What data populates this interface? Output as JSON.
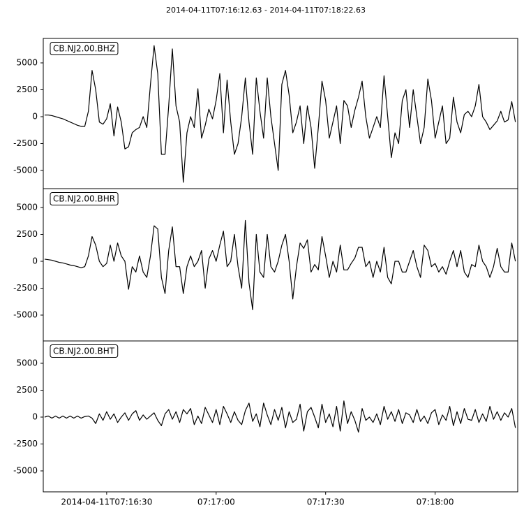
{
  "chart_data": {
    "type": "line",
    "title": "2014-04-11T07:16:12.63  -  2014-04-11T07:18:22.63",
    "xlim": [
      "2014-04-11T07:16:12.63",
      "2014-04-11T07:18:22.63"
    ],
    "xticks": [
      {
        "value": "2014-04-11T07:16:30",
        "label": "2014-04-11T07:16:30"
      },
      {
        "value": "2014-04-11T07:17:00",
        "label": "07:17:00"
      },
      {
        "value": "2014-04-11T07:17:30",
        "label": "07:17:30"
      },
      {
        "value": "2014-04-11T07:18:00",
        "label": "07:18:00"
      }
    ],
    "yticks": [
      -5000,
      -2500,
      0,
      2500,
      5000
    ],
    "x": [
      "2014-04-11T07:16:13",
      "2014-04-11T07:16:14",
      "2014-04-11T07:16:15",
      "2014-04-11T07:16:16",
      "2014-04-11T07:16:17",
      "2014-04-11T07:16:18",
      "2014-04-11T07:16:19",
      "2014-04-11T07:16:20",
      "2014-04-11T07:16:21",
      "2014-04-11T07:16:22",
      "2014-04-11T07:16:23",
      "2014-04-11T07:16:24",
      "2014-04-11T07:16:25",
      "2014-04-11T07:16:26",
      "2014-04-11T07:16:27",
      "2014-04-11T07:16:28",
      "2014-04-11T07:16:29",
      "2014-04-11T07:16:30",
      "2014-04-11T07:16:31",
      "2014-04-11T07:16:32",
      "2014-04-11T07:16:33",
      "2014-04-11T07:16:34",
      "2014-04-11T07:16:35",
      "2014-04-11T07:16:36",
      "2014-04-11T07:16:37",
      "2014-04-11T07:16:38",
      "2014-04-11T07:16:39",
      "2014-04-11T07:16:40",
      "2014-04-11T07:16:41",
      "2014-04-11T07:16:42",
      "2014-04-11T07:16:43",
      "2014-04-11T07:16:44",
      "2014-04-11T07:16:45",
      "2014-04-11T07:16:46",
      "2014-04-11T07:16:47",
      "2014-04-11T07:16:48",
      "2014-04-11T07:16:49",
      "2014-04-11T07:16:50",
      "2014-04-11T07:16:51",
      "2014-04-11T07:16:52",
      "2014-04-11T07:16:53",
      "2014-04-11T07:16:54",
      "2014-04-11T07:16:55",
      "2014-04-11T07:16:56",
      "2014-04-11T07:16:57",
      "2014-04-11T07:16:58",
      "2014-04-11T07:16:59",
      "2014-04-11T07:17:00",
      "2014-04-11T07:17:01",
      "2014-04-11T07:17:02",
      "2014-04-11T07:17:03",
      "2014-04-11T07:17:04",
      "2014-04-11T07:17:05",
      "2014-04-11T07:17:06",
      "2014-04-11T07:17:07",
      "2014-04-11T07:17:08",
      "2014-04-11T07:17:09",
      "2014-04-11T07:17:10",
      "2014-04-11T07:17:11",
      "2014-04-11T07:17:12",
      "2014-04-11T07:17:13",
      "2014-04-11T07:17:14",
      "2014-04-11T07:17:15",
      "2014-04-11T07:17:16",
      "2014-04-11T07:17:17",
      "2014-04-11T07:17:18",
      "2014-04-11T07:17:19",
      "2014-04-11T07:17:20",
      "2014-04-11T07:17:21",
      "2014-04-11T07:17:22",
      "2014-04-11T07:17:23",
      "2014-04-11T07:17:24",
      "2014-04-11T07:17:25",
      "2014-04-11T07:17:26",
      "2014-04-11T07:17:27",
      "2014-04-11T07:17:28",
      "2014-04-11T07:17:29",
      "2014-04-11T07:17:30",
      "2014-04-11T07:17:31",
      "2014-04-11T07:17:32",
      "2014-04-11T07:17:33",
      "2014-04-11T07:17:34",
      "2014-04-11T07:17:35",
      "2014-04-11T07:17:36",
      "2014-04-11T07:17:37",
      "2014-04-11T07:17:38",
      "2014-04-11T07:17:39",
      "2014-04-11T07:17:40",
      "2014-04-11T07:17:41",
      "2014-04-11T07:17:42",
      "2014-04-11T07:17:43",
      "2014-04-11T07:17:44",
      "2014-04-11T07:17:45",
      "2014-04-11T07:17:46",
      "2014-04-11T07:17:47",
      "2014-04-11T07:17:48",
      "2014-04-11T07:17:49",
      "2014-04-11T07:17:50",
      "2014-04-11T07:17:51",
      "2014-04-11T07:17:52",
      "2014-04-11T07:17:53",
      "2014-04-11T07:17:54",
      "2014-04-11T07:17:55",
      "2014-04-11T07:17:56",
      "2014-04-11T07:17:57",
      "2014-04-11T07:17:58",
      "2014-04-11T07:17:59",
      "2014-04-11T07:18:00",
      "2014-04-11T07:18:01",
      "2014-04-11T07:18:02",
      "2014-04-11T07:18:03",
      "2014-04-11T07:18:04",
      "2014-04-11T07:18:05",
      "2014-04-11T07:18:06",
      "2014-04-11T07:18:07",
      "2014-04-11T07:18:08",
      "2014-04-11T07:18:09",
      "2014-04-11T07:18:10",
      "2014-04-11T07:18:11",
      "2014-04-11T07:18:12",
      "2014-04-11T07:18:13",
      "2014-04-11T07:18:14",
      "2014-04-11T07:18:15",
      "2014-04-11T07:18:16",
      "2014-04-11T07:18:17",
      "2014-04-11T07:18:18",
      "2014-04-11T07:18:19",
      "2014-04-11T07:18:20",
      "2014-04-11T07:18:21",
      "2014-04-11T07:18:22"
    ],
    "series": [
      {
        "name": "CB.NJ2.00.BHZ",
        "color": "#000000",
        "ylim": [
          -6690,
          7273
        ],
        "values": [
          150,
          150,
          100,
          0,
          -100,
          -200,
          -350,
          -500,
          -650,
          -800,
          -900,
          -900,
          500,
          4300,
          2500,
          -500,
          -700,
          -200,
          1200,
          -1800,
          900,
          -500,
          -3000,
          -2800,
          -1500,
          -1200,
          -1000,
          0,
          -1000,
          3000,
          6600,
          4000,
          -3500,
          -3500,
          1000,
          6300,
          1000,
          -500,
          -6100,
          -1500,
          0,
          -1000,
          2600,
          -2000,
          -800,
          700,
          -200,
          1500,
          4000,
          -1500,
          3400,
          -500,
          -3500,
          -2500,
          0,
          3600,
          -500,
          -3500,
          3600,
          500,
          -2000,
          3600,
          0,
          -2500,
          -5000,
          3000,
          4300,
          2000,
          -1500,
          -500,
          1000,
          -2500,
          1000,
          -1000,
          -4800,
          -1000,
          3300,
          1500,
          -2000,
          -500,
          1000,
          -2500,
          1500,
          1000,
          -1000,
          600,
          1800,
          3300,
          0,
          -2000,
          -1000,
          0,
          -1000,
          3800,
          0,
          -3800,
          -1500,
          -2500,
          1500,
          2500,
          -1000,
          2500,
          0,
          -2500,
          -1000,
          3500,
          1500,
          -2000,
          -500,
          1000,
          -2500,
          -2000,
          1800,
          -500,
          -1500,
          200,
          500,
          0,
          1000,
          3000,
          0,
          -500,
          -1200,
          -800,
          -400,
          500,
          -500,
          -300,
          1400,
          -500
        ]
      },
      {
        "name": "CB.NJ2.00.BHR",
        "color": "#000000",
        "ylim": [
          -7403,
          6753
        ],
        "values": [
          200,
          150,
          100,
          0,
          -100,
          -150,
          -250,
          -350,
          -400,
          -500,
          -600,
          -500,
          500,
          2300,
          1500,
          0,
          -500,
          -200,
          1500,
          0,
          1700,
          500,
          0,
          -2600,
          -500,
          -1000,
          500,
          -1000,
          -1500,
          500,
          3300,
          3000,
          -1500,
          -3000,
          1000,
          3200,
          -500,
          -500,
          -3000,
          -500,
          500,
          -500,
          0,
          1000,
          -2500,
          200,
          1000,
          0,
          1500,
          2800,
          -500,
          0,
          2500,
          -500,
          -2500,
          3800,
          -2000,
          -4500,
          2500,
          -1000,
          -1500,
          2500,
          -500,
          -1000,
          0,
          1500,
          2500,
          0,
          -3500,
          -500,
          1700,
          1200,
          2000,
          -1000,
          -300,
          -800,
          2300,
          500,
          -1500,
          0,
          -1000,
          1500,
          -800,
          -800,
          -200,
          300,
          1300,
          1300,
          -500,
          0,
          -1500,
          0,
          -1000,
          1300,
          -1500,
          -2100,
          0,
          0,
          -1000,
          -1000,
          0,
          1000,
          -500,
          -1500,
          1500,
          1000,
          -500,
          -200,
          -1000,
          -500,
          -1200,
          0,
          1000,
          -500,
          1000,
          -1000,
          -1500,
          -300,
          -500,
          1500,
          0,
          -500,
          -1500,
          -500,
          1200,
          -500,
          -1000,
          -1000,
          1700,
          0
        ]
      },
      {
        "name": "CB.NJ2.00.BHT",
        "color": "#000000",
        "ylim": [
          -6948,
          7078
        ],
        "values": [
          0,
          100,
          -100,
          100,
          -100,
          100,
          -100,
          100,
          -100,
          100,
          -100,
          50,
          100,
          -100,
          -600,
          300,
          -300,
          500,
          -200,
          300,
          -500,
          0,
          400,
          -300,
          300,
          600,
          -300,
          200,
          -200,
          100,
          400,
          -300,
          -800,
          300,
          700,
          -200,
          500,
          -500,
          700,
          300,
          800,
          -700,
          100,
          -600,
          900,
          200,
          -500,
          700,
          -700,
          1000,
          300,
          -500,
          500,
          -300,
          -700,
          600,
          1300,
          -400,
          300,
          -900,
          1300,
          200,
          -700,
          700,
          -300,
          900,
          -1000,
          500,
          -500,
          -200,
          1200,
          -1300,
          500,
          900,
          0,
          -1000,
          1200,
          -500,
          300,
          -900,
          1000,
          -1300,
          1500,
          -600,
          500,
          -300,
          -1400,
          800,
          -300,
          0,
          -500,
          300,
          -700,
          1000,
          -200,
          500,
          -400,
          700,
          -600,
          400,
          200,
          -500,
          700,
          -400,
          100,
          -600,
          400,
          700,
          -700,
          200,
          -300,
          1000,
          -800,
          500,
          -600,
          800,
          -200,
          -300,
          700,
          -500,
          300,
          -400,
          1000,
          -200,
          500,
          -300,
          400,
          0,
          800,
          -1000
        ]
      }
    ]
  }
}
